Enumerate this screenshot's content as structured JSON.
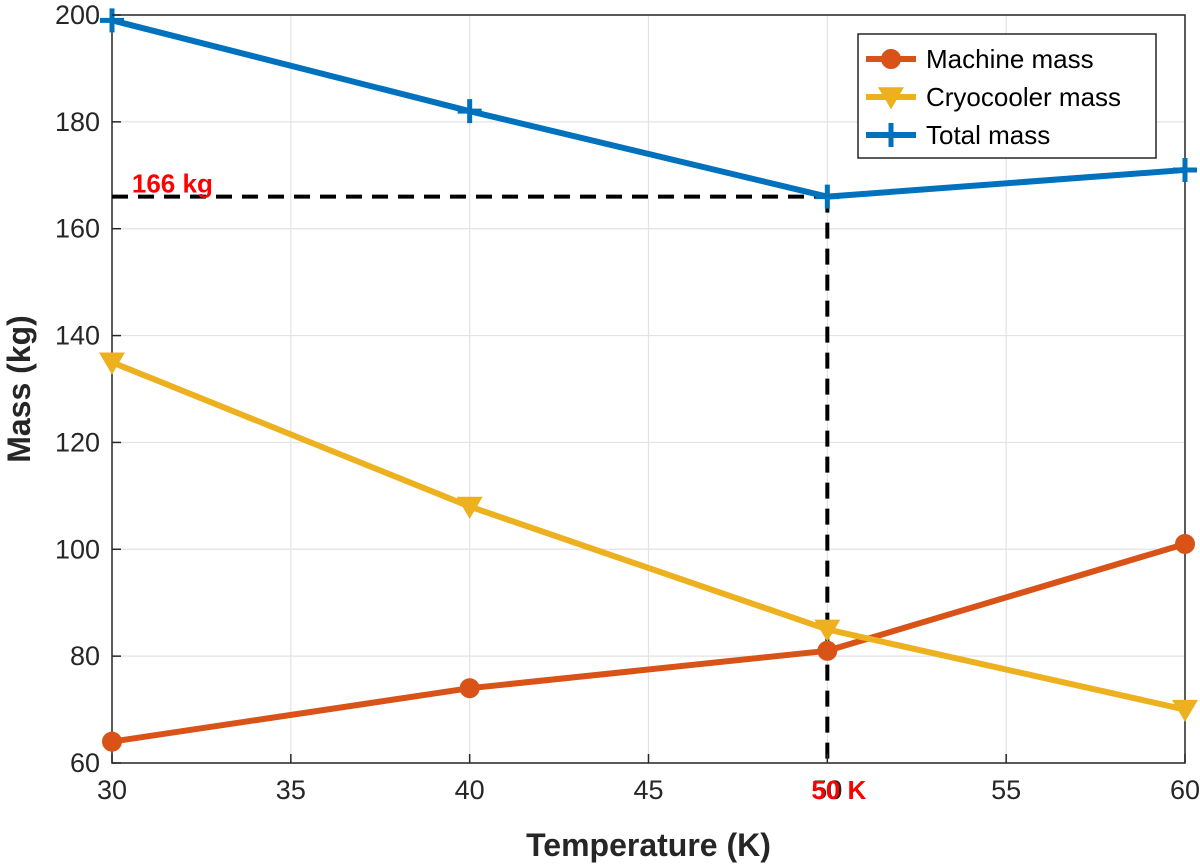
{
  "chart_data": {
    "type": "line",
    "title": "",
    "xlabel": "Temperature (K)",
    "ylabel": "Mass (kg)",
    "xlim": [
      30,
      60
    ],
    "ylim": [
      60,
      200
    ],
    "x": [
      30,
      40,
      50,
      60
    ],
    "xticks": [
      30,
      35,
      40,
      45,
      50,
      55,
      60
    ],
    "yticks": [
      60,
      80,
      100,
      120,
      140,
      160,
      180,
      200
    ],
    "grid": true,
    "legend_position": "top-right",
    "series": [
      {
        "name": "Machine mass",
        "values": [
          64,
          74,
          81,
          101
        ],
        "color": "#D95319",
        "marker": "circle"
      },
      {
        "name": "Cryocooler mass",
        "values": [
          135,
          108,
          85,
          70
        ],
        "color": "#EDB120",
        "marker": "triangle-down"
      },
      {
        "name": "Total mass",
        "values": [
          199,
          182,
          166,
          171
        ],
        "color": "#0072BD",
        "marker": "plus"
      }
    ],
    "annotations": [
      {
        "text": "166 kg",
        "x": 30.5,
        "y": 168.5,
        "color": "#FF0000"
      },
      {
        "text": "50 K",
        "x": 50,
        "y": 60,
        "color": "#FF0000"
      }
    ],
    "reference_lines": [
      {
        "style": "dashed",
        "color": "#000000",
        "from": [
          30,
          166
        ],
        "to": [
          50,
          166
        ]
      },
      {
        "style": "dashed",
        "color": "#000000",
        "from": [
          50,
          166
        ],
        "to": [
          50,
          60
        ]
      }
    ]
  }
}
